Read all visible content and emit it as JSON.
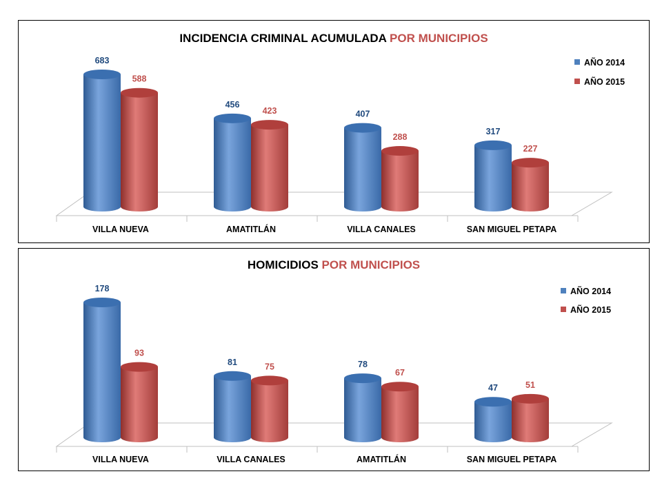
{
  "colors": {
    "series_2014": "#4f81bd",
    "series_2015": "#c0504d",
    "label_2014": "#1f497d",
    "label_2015": "#c0504d",
    "title_accent": "#c0504d"
  },
  "chart_data": [
    {
      "type": "bar",
      "style": "3d-cylinder",
      "title_part1": "INCIDENCIA CRIMINAL ACUMULADA ",
      "title_part2": "POR MUNICIPIOS",
      "categories": [
        "VILLA NUEVA",
        "AMATITLÁN",
        "VILLA CANALES",
        "SAN MIGUEL PETAPA"
      ],
      "series": [
        {
          "name": "AÑO 2014",
          "values": [
            683,
            456,
            407,
            317
          ]
        },
        {
          "name": "AÑO 2015",
          "values": [
            588,
            423,
            288,
            227
          ]
        }
      ],
      "ylim": [
        0,
        683
      ],
      "legend": "top-right",
      "grid": false
    },
    {
      "type": "bar",
      "style": "3d-cylinder",
      "title_part1": "HOMICIDIOS ",
      "title_part2": "POR MUNICIPIOS",
      "categories": [
        "VILLA NUEVA",
        "VILLA CANALES",
        "AMATITLÁN",
        "SAN MIGUEL PETAPA"
      ],
      "series": [
        {
          "name": "AÑO 2014",
          "values": [
            178,
            81,
            78,
            47
          ]
        },
        {
          "name": "AÑO 2015",
          "values": [
            93,
            75,
            67,
            51
          ]
        }
      ],
      "ylim": [
        0,
        178
      ],
      "legend": "top-right",
      "grid": false
    }
  ]
}
